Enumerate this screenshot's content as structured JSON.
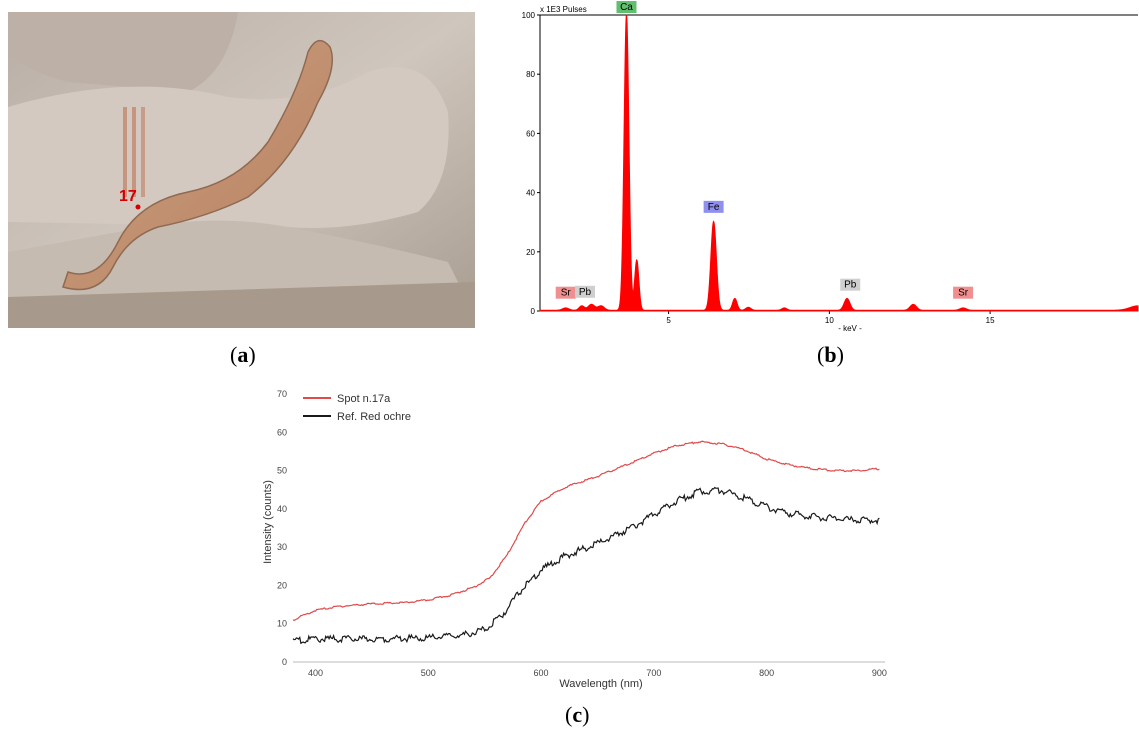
{
  "panels": {
    "a": {
      "label_open": "(",
      "label_letter": "a",
      "label_close": ")",
      "spot_label": "17"
    },
    "b": {
      "label_open": "(",
      "label_letter": "b",
      "label_close": ")"
    },
    "c": {
      "label_open": "(",
      "label_letter": "c",
      "label_close": ")"
    }
  },
  "colors": {
    "xrf_fill": "#ff0000",
    "ca_tag": "#5fbf6f",
    "fe_tag": "#8f8ff0",
    "pb_tag": "#cfcfcf",
    "sr_tag": "#f08f8f",
    "spot_line": "#e04a4a",
    "ref_line": "#1a1a1a",
    "spot_marker": "#d40000"
  },
  "chart_data": [
    {
      "type": "area",
      "title": "",
      "ylabel": "x 1E3 Pulses",
      "xlabel": "- keV -",
      "xlim": [
        1.0,
        19.6
      ],
      "ylim": [
        0,
        100
      ],
      "x_ticks": [
        5,
        10,
        15
      ],
      "y_ticks": [
        0,
        20,
        40,
        60,
        80,
        100
      ],
      "grid": false,
      "peaks": [
        {
          "x": 1.8,
          "height": 0.8,
          "width": 0.1
        },
        {
          "x": 2.3,
          "height": 1.5,
          "width": 0.08
        },
        {
          "x": 2.6,
          "height": 2.0,
          "width": 0.1
        },
        {
          "x": 2.9,
          "height": 1.5,
          "width": 0.1
        },
        {
          "x": 3.69,
          "height": 100,
          "width": 0.075
        },
        {
          "x": 4.01,
          "height": 17,
          "width": 0.065
        },
        {
          "x": 6.4,
          "height": 30,
          "width": 0.085
        },
        {
          "x": 7.06,
          "height": 4,
          "width": 0.07
        },
        {
          "x": 7.48,
          "height": 1,
          "width": 0.08
        },
        {
          "x": 8.6,
          "height": 0.8,
          "width": 0.08
        },
        {
          "x": 10.55,
          "height": 4,
          "width": 0.09
        },
        {
          "x": 12.61,
          "height": 2,
          "width": 0.1
        },
        {
          "x": 14.16,
          "height": 0.8,
          "width": 0.1
        },
        {
          "x": 19.6,
          "height": 1.5,
          "width": 0.25
        }
      ],
      "annotations": [
        {
          "text": "Ca",
          "x": 3.69,
          "y": 101,
          "color_key": "ca_tag"
        },
        {
          "text": "Fe",
          "x": 6.4,
          "y": 33.5,
          "color_key": "fe_tag"
        },
        {
          "text": "Sr",
          "x": 1.8,
          "y": 4.5,
          "color_key": "sr_tag"
        },
        {
          "text": "Pb",
          "x": 2.4,
          "y": 4.8,
          "color_key": "pb_tag"
        },
        {
          "text": "Pb",
          "x": 10.65,
          "y": 7.2,
          "color_key": "pb_tag"
        },
        {
          "text": "Sr",
          "x": 14.16,
          "y": 4.5,
          "color_key": "sr_tag"
        }
      ]
    },
    {
      "type": "line",
      "title": "",
      "xlabel": "Wavelength (nm)",
      "ylabel": "Intensity (counts)",
      "xlim": [
        380,
        905
      ],
      "ylim": [
        0,
        70
      ],
      "x_ticks": [
        400,
        500,
        600,
        700,
        800,
        900
      ],
      "y_ticks": [
        0,
        10,
        20,
        30,
        40,
        50,
        60,
        70
      ],
      "legend": "top-left",
      "grid": false,
      "series": [
        {
          "name": "Spot n.17a",
          "color_key": "spot_line",
          "x": [
            380,
            400,
            420,
            450,
            480,
            500,
            520,
            540,
            555,
            570,
            585,
            600,
            620,
            650,
            680,
            700,
            720,
            740,
            760,
            780,
            800,
            820,
            840,
            860,
            880,
            900
          ],
          "y": [
            11,
            13.5,
            14.5,
            15.2,
            15.5,
            16.2,
            17.5,
            19.5,
            22,
            28,
            36,
            42,
            45.5,
            48.5,
            52,
            54.5,
            56.5,
            57.5,
            57,
            55.5,
            53,
            51.5,
            50.5,
            50,
            50,
            50.5
          ]
        },
        {
          "name": "Ref. Red ochre",
          "color_key": "ref_line",
          "x": [
            380,
            400,
            450,
            500,
            530,
            550,
            565,
            580,
            600,
            620,
            650,
            680,
            700,
            720,
            740,
            760,
            780,
            800,
            820,
            840,
            860,
            880,
            900
          ],
          "y": [
            5.5,
            6,
            6,
            6.3,
            7,
            8.5,
            12,
            18,
            24,
            27.5,
            31,
            35,
            38.5,
            42,
            44.5,
            44.8,
            43,
            40.5,
            38.8,
            38,
            37.5,
            37,
            37
          ]
        }
      ]
    }
  ]
}
